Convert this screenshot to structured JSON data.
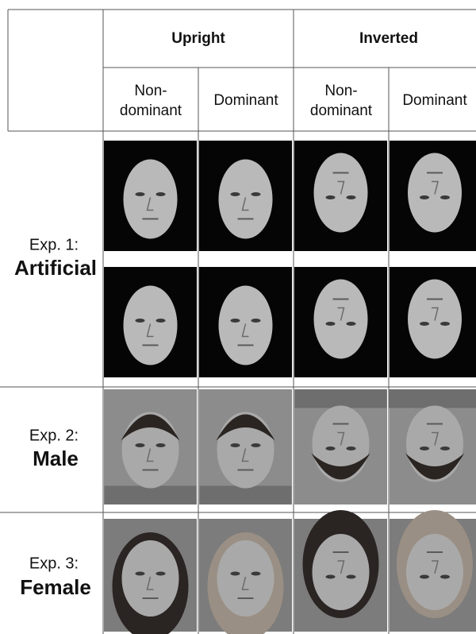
{
  "header": {
    "conditions": [
      "Upright",
      "Inverted"
    ],
    "subheaders": [
      [
        "Non-",
        "dominant"
      ],
      [
        "Dominant"
      ],
      [
        "Non-",
        "dominant"
      ],
      [
        "Dominant"
      ]
    ]
  },
  "rows": [
    {
      "label": "Exp. 1:",
      "name": "Artificial"
    },
    {
      "label": "Exp. 2:",
      "name": "Male"
    },
    {
      "label": "Exp. 3:",
      "name": "Female"
    }
  ]
}
